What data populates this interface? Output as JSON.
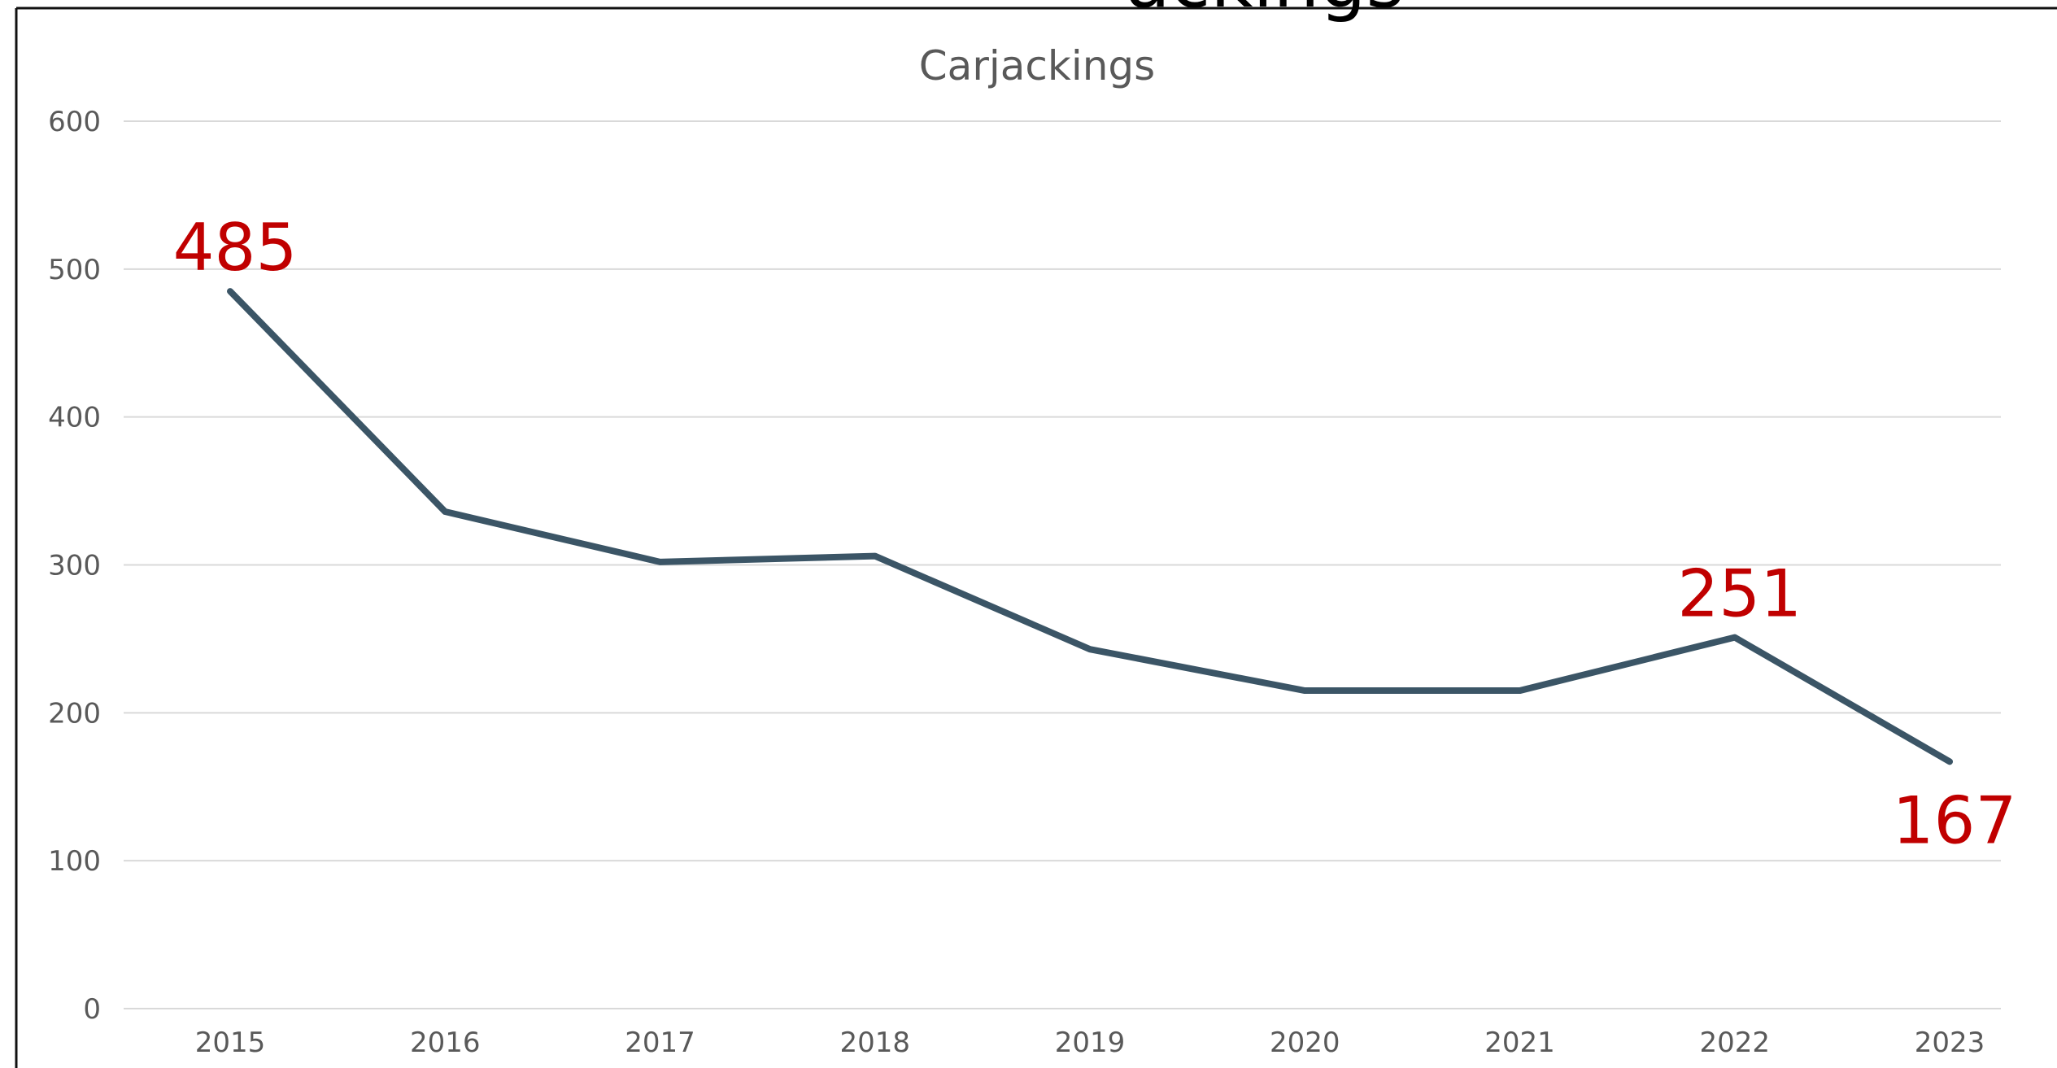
{
  "chart_data": {
    "type": "line",
    "title": "Carjackings",
    "header_fragment": "ackings",
    "xlabel": "",
    "ylabel": "",
    "categories": [
      "2015",
      "2016",
      "2017",
      "2018",
      "2019",
      "2020",
      "2021",
      "2022",
      "2023"
    ],
    "series": [
      {
        "values": [
          485,
          336,
          302,
          306,
          243,
          215,
          215,
          251,
          167
        ],
        "color": "#3b5566"
      }
    ],
    "ylim": [
      0,
      600
    ],
    "yticks": [
      "0",
      "100",
      "200",
      "300",
      "400",
      "500",
      "600"
    ],
    "grid": true,
    "legend": "none",
    "data_labels": [
      {
        "category": "2015",
        "text": "485",
        "position": "above"
      },
      {
        "category": "2022",
        "text": "251",
        "position": "above"
      },
      {
        "category": "2023",
        "text": "167",
        "position": "below"
      }
    ],
    "label_color": "#c00000"
  }
}
